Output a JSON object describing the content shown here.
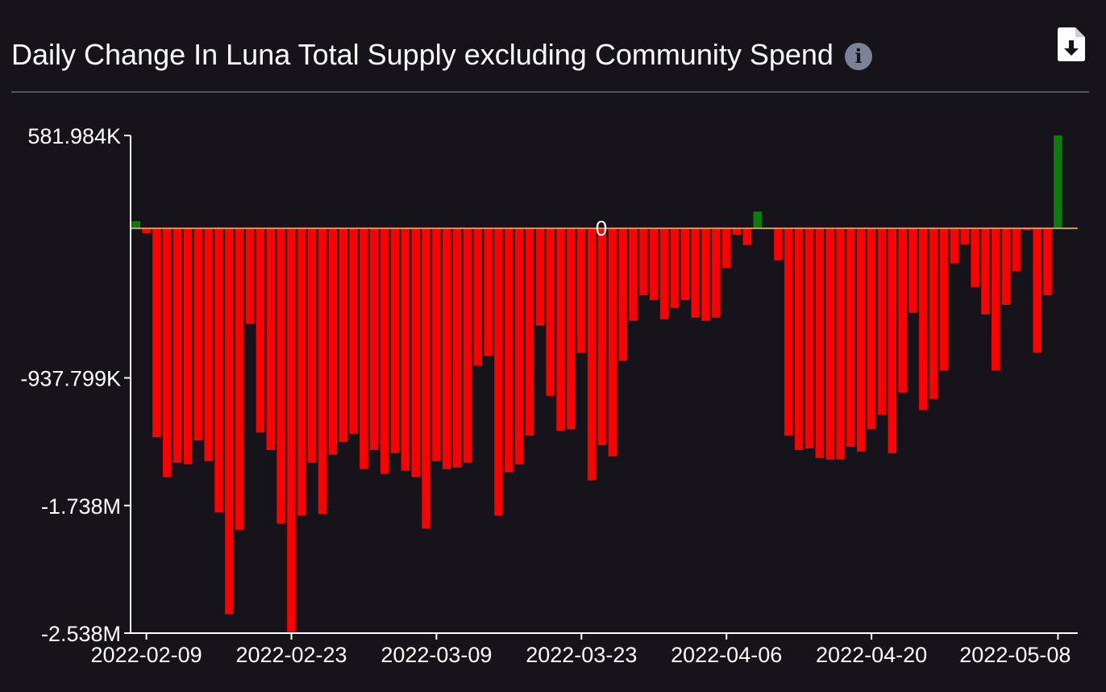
{
  "title": "Daily Change In Luna Total Supply excluding Community Spend",
  "info_icon": "info-icon",
  "download_icon": "file-download-icon",
  "colors": {
    "background": "#16141a",
    "positive": "#0a7d0a",
    "negative": "#ff0000",
    "zero_line": "#c8a05a",
    "axis": "#ffffff",
    "divider": "#4e5368"
  },
  "chart_data": {
    "type": "bar",
    "title": "Daily Change In Luna Total Supply excluding Community Spend",
    "xlabel": "",
    "ylabel": "",
    "ylim": [
      -2538000,
      581984
    ],
    "y_ticks": [
      581984,
      -937799,
      -1738000,
      -2538000
    ],
    "y_tick_labels": [
      "581.984K",
      "-937.799K",
      "-1.738M",
      "-2.538M"
    ],
    "zero_label": "0",
    "x_ticks": [
      "2022-02-09",
      "2022-02-23",
      "2022-03-09",
      "2022-03-23",
      "2022-04-06",
      "2022-04-20",
      "2022-05-08"
    ],
    "grid": false,
    "legend": "none",
    "dates": [
      "2022-02-08",
      "2022-02-09",
      "2022-02-10",
      "2022-02-11",
      "2022-02-12",
      "2022-02-13",
      "2022-02-14",
      "2022-02-15",
      "2022-02-16",
      "2022-02-17",
      "2022-02-18",
      "2022-02-19",
      "2022-02-20",
      "2022-02-21",
      "2022-02-22",
      "2022-02-23",
      "2022-02-24",
      "2022-02-25",
      "2022-02-26",
      "2022-02-27",
      "2022-02-28",
      "2022-03-01",
      "2022-03-02",
      "2022-03-03",
      "2022-03-04",
      "2022-03-05",
      "2022-03-06",
      "2022-03-07",
      "2022-03-08",
      "2022-03-09",
      "2022-03-10",
      "2022-03-11",
      "2022-03-12",
      "2022-03-13",
      "2022-03-14",
      "2022-03-15",
      "2022-03-16",
      "2022-03-17",
      "2022-03-18",
      "2022-03-19",
      "2022-03-20",
      "2022-03-21",
      "2022-03-22",
      "2022-03-23",
      "2022-03-24",
      "2022-03-25",
      "2022-03-26",
      "2022-03-27",
      "2022-03-28",
      "2022-03-29",
      "2022-03-30",
      "2022-03-31",
      "2022-04-01",
      "2022-04-02",
      "2022-04-03",
      "2022-04-04",
      "2022-04-05",
      "2022-04-06",
      "2022-04-07",
      "2022-04-08",
      "2022-04-09",
      "2022-04-10",
      "2022-04-11",
      "2022-04-12",
      "2022-04-13",
      "2022-04-14",
      "2022-04-15",
      "2022-04-16",
      "2022-04-17",
      "2022-04-18",
      "2022-04-19",
      "2022-04-20",
      "2022-04-21",
      "2022-04-22",
      "2022-04-23",
      "2022-04-24",
      "2022-04-25",
      "2022-04-26",
      "2022-04-27",
      "2022-04-28",
      "2022-04-29",
      "2022-04-30",
      "2022-05-01",
      "2022-05-02",
      "2022-05-03",
      "2022-05-04",
      "2022-05-05",
      "2022-05-06",
      "2022-05-07",
      "2022-05-08",
      "2022-05-09",
      "2022-05-10"
    ],
    "values": [
      45000,
      -30000,
      -1310000,
      -1560000,
      -1470000,
      -1480000,
      -1330000,
      -1460000,
      -1780000,
      -2420000,
      -1890000,
      -600000,
      -1280000,
      -1390000,
      -1850000,
      -2530000,
      -1800000,
      -1470000,
      -1790000,
      -1420000,
      -1340000,
      -1290000,
      -1510000,
      -1390000,
      -1540000,
      -1410000,
      -1520000,
      -1560000,
      -1880000,
      -1460000,
      -1510000,
      -1500000,
      -1470000,
      -860000,
      -800000,
      -1800000,
      -1530000,
      -1480000,
      -1300000,
      -610000,
      -1050000,
      -1270000,
      -1260000,
      -780000,
      -1580000,
      -1360000,
      -1430000,
      -830000,
      -580000,
      -420000,
      -450000,
      -570000,
      -500000,
      -450000,
      -560000,
      -580000,
      -560000,
      -250000,
      -40000,
      -105000,
      105000,
      0,
      -200000,
      -1300000,
      -1390000,
      -1380000,
      -1440000,
      -1450000,
      -1450000,
      -1370000,
      -1400000,
      -1260000,
      -1170000,
      -1410000,
      -1030000,
      -530000,
      -1140000,
      -1070000,
      -890000,
      -220000,
      -100000,
      -370000,
      -540000,
      -890000,
      -480000,
      -270000,
      -10000,
      -780000,
      -420000,
      581984,
      0,
      0
    ]
  }
}
